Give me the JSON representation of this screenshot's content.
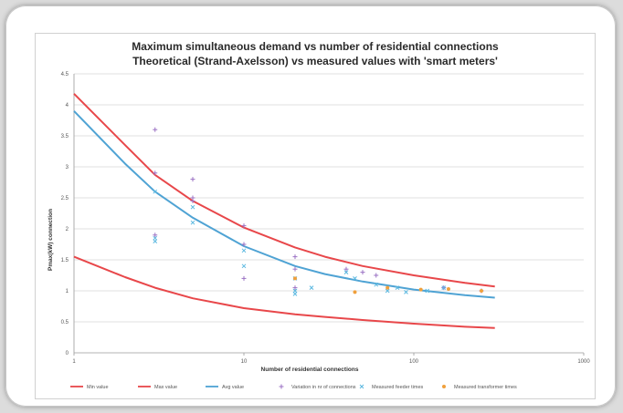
{
  "chart_data": {
    "type": "line",
    "title": "Maximum simultaneous demand vs number of residential connections",
    "subtitle": "Theoretical (Strand-Axelsson) vs measured values with 'smart meters'",
    "xlabel": "Number of residential connections",
    "ylabel": "Pmax(kW) connection",
    "x_scale": "log",
    "xlim": [
      1,
      1000
    ],
    "ylim": [
      0,
      4.5
    ],
    "x_ticks": [
      "1",
      "10",
      "100",
      "1000"
    ],
    "y_ticks": [
      "0",
      "0.5",
      "1",
      "1.5",
      "2",
      "2.5",
      "3",
      "3.5",
      "4",
      "4.5"
    ],
    "grid": true,
    "legend_position": "bottom",
    "series": [
      {
        "name": "Min value",
        "kind": "line",
        "color": "#e8474a",
        "x": [
          1,
          2,
          3,
          5,
          10,
          20,
          30,
          50,
          100,
          200,
          300
        ],
        "y": [
          1.55,
          1.22,
          1.05,
          0.88,
          0.72,
          0.62,
          0.58,
          0.53,
          0.47,
          0.42,
          0.4
        ]
      },
      {
        "name": "Max value",
        "kind": "line",
        "color": "#e8474a",
        "x": [
          1,
          2,
          3,
          5,
          10,
          20,
          30,
          50,
          100,
          200,
          300
        ],
        "y": [
          4.18,
          3.35,
          2.87,
          2.45,
          2.02,
          1.7,
          1.55,
          1.4,
          1.25,
          1.13,
          1.07
        ]
      },
      {
        "name": "Avg value",
        "kind": "line",
        "color": "#4fa3d4",
        "x": [
          1,
          2,
          3,
          5,
          10,
          20,
          30,
          50,
          100,
          200,
          300
        ],
        "y": [
          3.9,
          3.05,
          2.6,
          2.18,
          1.72,
          1.4,
          1.27,
          1.15,
          1.02,
          0.93,
          0.89
        ]
      },
      {
        "name": "Variation in nr of connections",
        "kind": "scatter",
        "marker": "cross",
        "color": "#9b72c4",
        "x": [
          3,
          3,
          3,
          5,
          5,
          5,
          10,
          10,
          10,
          20,
          20,
          20,
          40,
          50,
          60,
          150,
          250
        ],
        "y": [
          3.6,
          2.9,
          1.9,
          2.8,
          2.5,
          2.45,
          2.05,
          1.75,
          1.2,
          1.55,
          1.35,
          1.05,
          1.35,
          1.3,
          1.25,
          1.05,
          1.0
        ]
      },
      {
        "name": "Measured feeder times",
        "kind": "scatter",
        "marker": "x",
        "color": "#5bb8e0",
        "x": [
          3,
          3,
          3,
          5,
          5,
          10,
          10,
          20,
          20,
          20,
          25,
          40,
          45,
          60,
          70,
          80,
          90,
          120,
          150
        ],
        "y": [
          2.6,
          1.8,
          1.85,
          2.35,
          2.1,
          1.65,
          1.4,
          1.2,
          1.0,
          0.95,
          1.05,
          1.3,
          1.2,
          1.1,
          1.0,
          1.05,
          0.98,
          1.0,
          1.05
        ]
      },
      {
        "name": "Measured transformer times",
        "kind": "scatter",
        "marker": "dot",
        "color": "#f0a03c",
        "x": [
          20,
          45,
          70,
          110,
          160,
          250
        ],
        "y": [
          1.2,
          0.98,
          1.05,
          1.02,
          1.03,
          1.0
        ]
      }
    ]
  }
}
